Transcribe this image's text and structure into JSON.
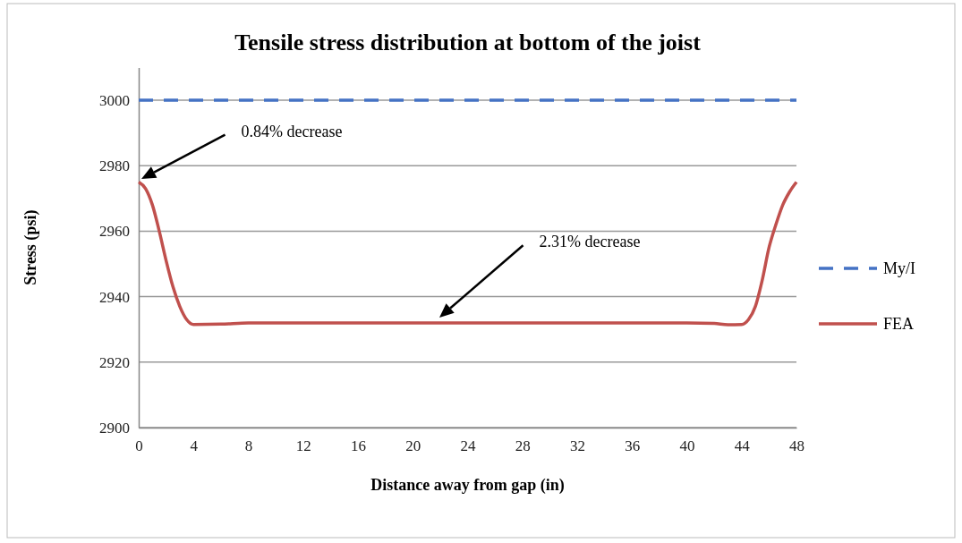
{
  "chart_data": {
    "type": "line",
    "title": "Tensile stress distribution at bottom of the joist",
    "xlabel": "Distance away from gap (in)",
    "ylabel": "Stress (psi)",
    "xlim": [
      0,
      48
    ],
    "xticks": [
      0,
      4,
      8,
      12,
      16,
      20,
      24,
      28,
      32,
      36,
      40,
      44,
      48
    ],
    "ylim": [
      2900,
      3010
    ],
    "yticks": [
      2900,
      2920,
      2940,
      2960,
      2980,
      3000
    ],
    "grid": "y",
    "legend": "right",
    "series": [
      {
        "name": "My/I",
        "color": "#4472c4",
        "line_style": "dashed",
        "x": [
          0,
          48
        ],
        "values": [
          3000,
          3000
        ]
      },
      {
        "name": "FEA",
        "color": "#c0504d",
        "line_style": "solid",
        "x": [
          0,
          0.5,
          1,
          1.5,
          2,
          2.5,
          3,
          3.5,
          4,
          6,
          8,
          12,
          20,
          28,
          36,
          40,
          42,
          43,
          44,
          44.5,
          45,
          45.5,
          46,
          46.5,
          47,
          47.5,
          48
        ],
        "values": [
          2975,
          2973,
          2968,
          2960,
          2951,
          2943,
          2937,
          2933,
          2931.5,
          2931.6,
          2932,
          2932,
          2932,
          2932,
          2932,
          2932,
          2931.8,
          2931.4,
          2931.5,
          2933,
          2937,
          2945,
          2955,
          2962,
          2968,
          2972,
          2975
        ]
      }
    ],
    "annotations": [
      "0.84% decrease",
      "2.31% decrease"
    ]
  }
}
